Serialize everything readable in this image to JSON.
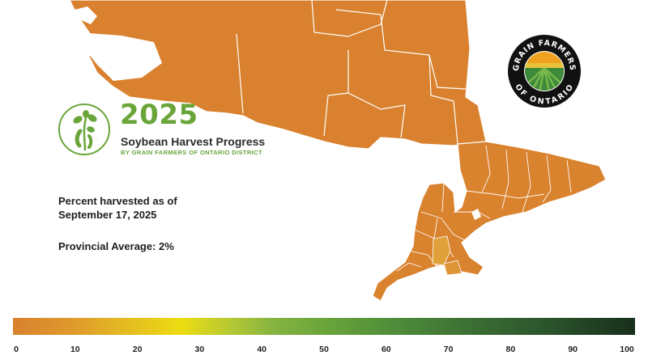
{
  "header": {
    "year": "2025",
    "title": "Soybean Harvest Progress",
    "subtitle": "BY GRAIN FARMERS OF ONTARIO DISTRICT",
    "logo_text": "GRAIN FARMERS OF ONTARIO",
    "badge_icon": "soybean-plant-icon"
  },
  "info": {
    "as_of_line1": "Percent harvested as of",
    "as_of_line2": "September 17, 2025",
    "provincial_average": "Provincial Average: 2%"
  },
  "map": {
    "region": "Ontario",
    "base_color": "#d9812e",
    "border_color": "#ffffff",
    "water_color": "#ffffff"
  },
  "legend": {
    "min": 0,
    "max": 100,
    "colors": [
      "#d9812e",
      "#e5c21f",
      "#eddc12",
      "#84b340",
      "#6aa53a",
      "#3a6c33",
      "#182f1b"
    ],
    "ticks": [
      "0",
      "10",
      "20",
      "30",
      "40",
      "50",
      "60",
      "70",
      "80",
      "90",
      "100"
    ]
  }
}
